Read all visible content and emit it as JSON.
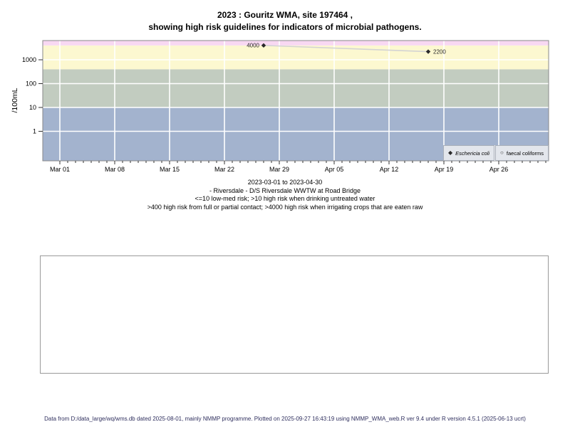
{
  "title": {
    "line1": "2023 : Gouritz WMA, site 197464 ,",
    "line2": "showing high risk guidelines for indicators of microbial pathogens."
  },
  "caption": {
    "line1": "2023-03-01 to 2023-04-30",
    "line2": "- Riversdale - D/S Riversdale WWTW at Road Bridge",
    "line3": "<=10 low-med risk; >10 high risk when drinking untreated water",
    "line4": ">400 high risk from full or partial contact; >4000 high risk when irrigating crops that are eaten raw"
  },
  "legend": {
    "items": [
      {
        "label": "Eschericia coli",
        "marker": "filled-diamond"
      },
      {
        "label": "faecal coliforms",
        "marker": "open-circle"
      }
    ]
  },
  "footer": "Data from D:/data_large/wq/wms.db dated 2025-08-01, mainly NMMP programme. Plotted on 2025-09-27 16:43:19 using NMMP_WMA_web.R ver 9.4 under R version 4.5.1 (2025-06-13 ucrt)",
  "chart_data": {
    "type": "scatter",
    "title": "2023 : Gouritz WMA, site 197464 , showing high risk guidelines for indicators of microbial pathogens.",
    "xlabel": "",
    "ylabel": "/100mL",
    "y_scale": "log10",
    "y_ticks": [
      1,
      10,
      100,
      1000
    ],
    "x_tick_labels": [
      "Mar 01",
      "Mar 08",
      "Mar 15",
      "Mar 22",
      "Mar 29",
      "Apr 05",
      "Apr 12",
      "Apr 19",
      "Apr 26"
    ],
    "x_range": [
      "2023-03-01",
      "2023-04-30"
    ],
    "grid": "white lines at log decades and weekly dates",
    "legend_position": "bottom-right inside plot",
    "series": [
      {
        "name": "Eschericia coli",
        "marker": "filled-diamond",
        "color": "#2a2a2a",
        "line_color": "#d3d3d3",
        "points": [
          {
            "date": "2023-03-27",
            "value": 4000,
            "label": "4000",
            "label_side": "left"
          },
          {
            "date": "2023-04-17",
            "value": 2200,
            "label": "2200",
            "label_side": "right"
          }
        ]
      },
      {
        "name": "faecal coliforms",
        "marker": "open-circle",
        "color": "#2a2a2a",
        "points": []
      }
    ],
    "risk_bands": [
      {
        "label": "<=10 low-med risk",
        "max": 10,
        "color": "#a3b3ce"
      },
      {
        "label": ">10 high risk when drinking untreated water",
        "min": 10,
        "max": 400,
        "color": "#c2ccc0"
      },
      {
        "label": ">400 high risk from full or partial contact",
        "min": 400,
        "max": 4000,
        "color": "#fcf8d0"
      },
      {
        "label": ">4000 high risk when irrigating crops that are eaten raw",
        "min": 4000,
        "color": "#f8d8f2"
      }
    ]
  }
}
